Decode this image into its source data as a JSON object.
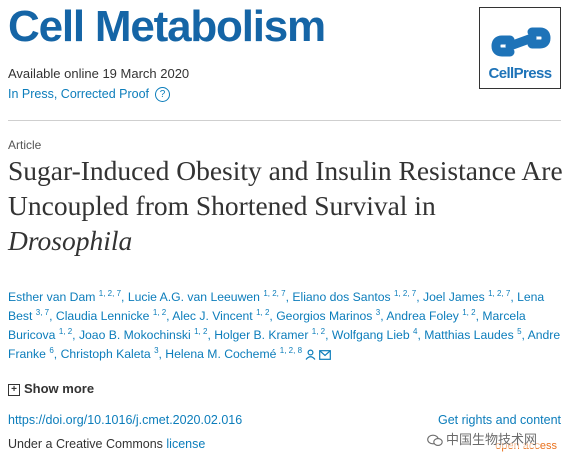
{
  "journal": {
    "name": "Cell Metabolism"
  },
  "publisher": {
    "logo_text": "CellPress"
  },
  "meta": {
    "available": "Available online 19 March 2020",
    "status": "In Press, Corrected Proof",
    "help_glyph": "?"
  },
  "article": {
    "type": "Article",
    "title_main": "Sugar-Induced Obesity and Insulin Resistance Are Uncoupled from Shortened Survival in ",
    "title_italic": "Drosophila"
  },
  "authors": [
    {
      "name": "Esther van Dam",
      "sup": "1, 2, 7"
    },
    {
      "name": "Lucie A.G. van Leeuwen",
      "sup": "1, 2, 7"
    },
    {
      "name": "Eliano dos Santos",
      "sup": "1, 2, 7"
    },
    {
      "name": "Joel James",
      "sup": "1, 2, 7"
    },
    {
      "name": "Lena Best",
      "sup": "3, 7"
    },
    {
      "name": "Claudia Lennicke",
      "sup": "1, 2"
    },
    {
      "name": "Alec J. Vincent",
      "sup": "1, 2"
    },
    {
      "name": "Georgios Marinos",
      "sup": "3"
    },
    {
      "name": "Andrea Foley",
      "sup": "1, 2"
    },
    {
      "name": "Marcela Buricova",
      "sup": "1, 2"
    },
    {
      "name": "Joao B. Mokochinski",
      "sup": "1, 2"
    },
    {
      "name": "Holger B. Kramer",
      "sup": "1, 2"
    },
    {
      "name": "Wolfgang Lieb",
      "sup": "4"
    },
    {
      "name": "Matthias Laudes",
      "sup": "5"
    },
    {
      "name": "Andre Franke",
      "sup": "6"
    },
    {
      "name": "Christoph Kaleta",
      "sup": "3"
    },
    {
      "name": "Helena M. Cochemé",
      "sup": "1, 2, 8"
    }
  ],
  "links": {
    "show_more": "Show more",
    "show_more_glyph": "+",
    "doi": "https://doi.org/10.1016/j.cmet.2020.02.016",
    "rights": "Get rights and content",
    "license_prefix": "Under a Creative Commons ",
    "license_link": "license",
    "open_access": "open access"
  },
  "watermark": {
    "text": "中国生物技术网"
  },
  "colors": {
    "brand": "#1565a6",
    "link": "#0c7dbb",
    "open_access": "#e9711c"
  }
}
